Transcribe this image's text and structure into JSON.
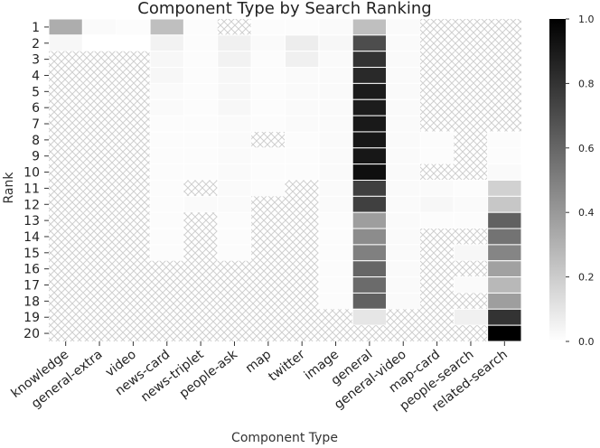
{
  "chart_data": {
    "type": "heatmap",
    "title": "Component Type by Search Ranking",
    "xlabel": "Component Type",
    "ylabel": "Rank",
    "x_categories": [
      "knowledge",
      "general-extra",
      "video",
      "news-card",
      "news-triplet",
      "people-ask",
      "map",
      "twitter",
      "image",
      "general",
      "general-video",
      "map-card",
      "people-search",
      "related-search"
    ],
    "y_categories": [
      "1",
      "2",
      "3",
      "4",
      "5",
      "6",
      "7",
      "8",
      "9",
      "10",
      "11",
      "12",
      "13",
      "14",
      "15",
      "16",
      "17",
      "18",
      "19",
      "20"
    ],
    "missing_pattern": "cross-hatch",
    "colormap": "white-to-black",
    "colorbar": {
      "min": 0.0,
      "max": 1.0,
      "ticks": [
        "0.0",
        "0.2",
        "0.4",
        "0.6",
        "0.8",
        "1.0"
      ]
    },
    "values": [
      [
        0.32,
        0.02,
        0.01,
        0.25,
        0.01,
        null,
        0.01,
        0.01,
        0.02,
        0.25,
        0.02,
        null,
        null,
        null
      ],
      [
        0.03,
        0.0,
        0.0,
        0.05,
        0.01,
        0.06,
        0.02,
        0.07,
        0.03,
        0.7,
        0.02,
        null,
        null,
        null
      ],
      [
        null,
        null,
        null,
        0.03,
        0.01,
        0.05,
        0.01,
        0.06,
        0.02,
        0.8,
        0.02,
        null,
        null,
        null
      ],
      [
        null,
        null,
        null,
        0.03,
        0.01,
        0.03,
        0.01,
        0.02,
        0.02,
        0.84,
        0.02,
        null,
        null,
        null
      ],
      [
        null,
        null,
        null,
        0.02,
        0.01,
        0.03,
        0.01,
        0.02,
        0.02,
        0.89,
        0.02,
        null,
        null,
        null
      ],
      [
        null,
        null,
        null,
        0.02,
        0.01,
        0.03,
        0.01,
        0.02,
        0.02,
        0.89,
        0.02,
        null,
        null,
        null
      ],
      [
        null,
        null,
        null,
        0.01,
        0.01,
        0.02,
        0.01,
        0.02,
        0.02,
        0.9,
        0.02,
        null,
        null,
        null
      ],
      [
        null,
        null,
        null,
        0.01,
        0.01,
        0.02,
        null,
        0.01,
        0.02,
        0.91,
        0.02,
        0.01,
        null,
        0.01
      ],
      [
        null,
        null,
        null,
        0.01,
        0.01,
        0.02,
        0.01,
        0.01,
        0.02,
        0.91,
        0.02,
        0.01,
        null,
        0.01
      ],
      [
        null,
        null,
        null,
        0.01,
        0.01,
        0.02,
        0.01,
        0.01,
        0.02,
        0.94,
        0.02,
        null,
        null,
        0.02
      ],
      [
        null,
        null,
        null,
        0.01,
        null,
        0.02,
        0.01,
        null,
        0.02,
        0.75,
        0.02,
        0.02,
        0.01,
        0.18
      ],
      [
        null,
        null,
        null,
        0.01,
        0.02,
        0.02,
        null,
        null,
        0.02,
        0.75,
        0.02,
        0.03,
        0.02,
        0.22
      ],
      [
        null,
        null,
        null,
        0.01,
        null,
        0.01,
        null,
        null,
        0.01,
        0.38,
        0.02,
        0.01,
        0.01,
        0.62
      ],
      [
        null,
        null,
        null,
        0.01,
        null,
        0.01,
        null,
        null,
        0.01,
        0.45,
        0.02,
        null,
        null,
        0.55
      ],
      [
        null,
        null,
        null,
        0.01,
        null,
        0.01,
        null,
        null,
        0.01,
        0.5,
        0.02,
        null,
        0.03,
        0.48
      ],
      [
        null,
        null,
        null,
        null,
        null,
        null,
        null,
        null,
        0.01,
        0.6,
        0.02,
        null,
        null,
        0.37
      ],
      [
        null,
        null,
        null,
        null,
        null,
        null,
        null,
        null,
        0.01,
        0.58,
        0.02,
        null,
        0.02,
        0.28
      ],
      [
        null,
        null,
        null,
        null,
        null,
        null,
        null,
        null,
        0.01,
        0.62,
        0.02,
        null,
        null,
        0.38
      ],
      [
        null,
        null,
        null,
        null,
        null,
        null,
        null,
        null,
        null,
        0.1,
        null,
        null,
        0.06,
        0.8
      ],
      [
        null,
        null,
        null,
        null,
        null,
        null,
        null,
        null,
        null,
        null,
        null,
        null,
        null,
        1.0
      ]
    ]
  }
}
